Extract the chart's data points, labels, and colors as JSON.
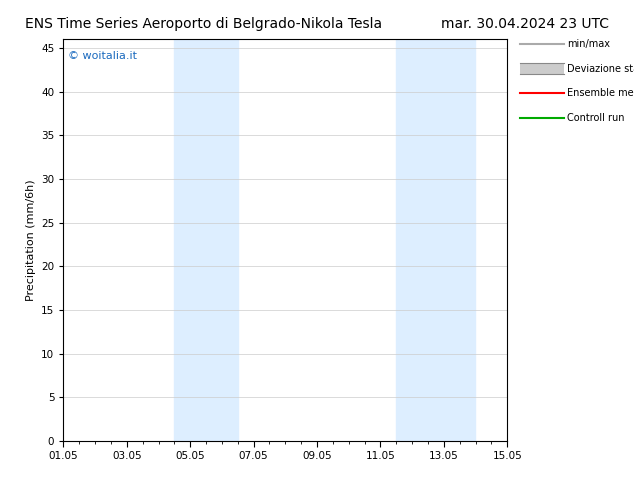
{
  "title_left": "ENS Time Series Aeroporto di Belgrado-Nikola Tesla",
  "title_right": "mar. 30.04.2024 23 UTC",
  "ylabel": "Precipitation (mm/6h)",
  "xlabel_ticks": [
    "01.05",
    "03.05",
    "05.05",
    "07.05",
    "09.05",
    "11.05",
    "13.05",
    "15.05"
  ],
  "x_tick_positions": [
    0,
    2,
    4,
    6,
    8,
    10,
    12,
    14
  ],
  "ylim": [
    0,
    46
  ],
  "xlim": [
    0,
    14
  ],
  "yticks": [
    0,
    5,
    10,
    15,
    20,
    25,
    30,
    35,
    40,
    45
  ],
  "shaded_bands": [
    {
      "x_start": 3.5,
      "x_end": 5.5
    },
    {
      "x_start": 10.5,
      "x_end": 12.0
    },
    {
      "x_start": 12.0,
      "x_end": 13.0
    }
  ],
  "shaded_color": "#ddeeff",
  "bg_color": "#ffffff",
  "plot_bg_color": "#ffffff",
  "legend_items": [
    {
      "label": "min/max",
      "color": "#aaaaaa",
      "lw": 1.5,
      "style": "solid"
    },
    {
      "label": "Deviazione standard",
      "color": "#cccccc",
      "lw": 6,
      "style": "solid"
    },
    {
      "label": "Ensemble mean run",
      "color": "#ff0000",
      "lw": 1.5,
      "style": "solid"
    },
    {
      "label": "Controll run",
      "color": "#00aa00",
      "lw": 1.5,
      "style": "solid"
    }
  ],
  "watermark_text": "© woitalia.it",
  "watermark_color": "#1a6abf",
  "title_fontsize": 10,
  "axis_label_fontsize": 8,
  "tick_fontsize": 7.5
}
